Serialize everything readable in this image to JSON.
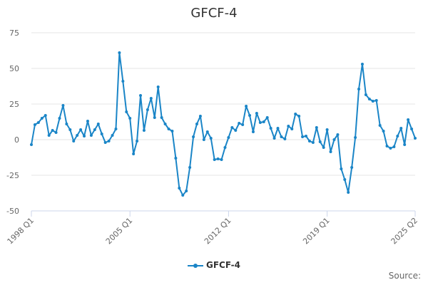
{
  "chart_data": {
    "type": "line",
    "title": "GFCF-4",
    "xlabel": "",
    "ylabel": "",
    "ylim": [
      -50,
      75
    ],
    "y_ticks": [
      "75",
      "50",
      "25",
      "0",
      "-25",
      "-50"
    ],
    "x_tick_labels": [
      "1998 Q1",
      "2005 Q1",
      "2012 Q1",
      "2019 Q1",
      "2025 Q2"
    ],
    "grid": true,
    "legend_position": "bottom-center",
    "series": [
      {
        "name": "GFCF-4",
        "color": "#1a85c7",
        "values": [
          -3.5,
          10.5,
          12,
          15,
          17,
          3,
          6.5,
          5,
          15,
          24,
          11,
          7,
          -1,
          3,
          7,
          2.5,
          13,
          3,
          7,
          11,
          4,
          -2,
          -1,
          3,
          7.5,
          61,
          41,
          19.5,
          15,
          -10,
          -1,
          31,
          6.5,
          21,
          29,
          15.5,
          37,
          15.5,
          11,
          7.5,
          6,
          -13,
          -34,
          -39,
          -36,
          -19.5,
          2,
          11,
          16.5,
          0,
          5.5,
          1,
          -14,
          -13.5,
          -14,
          -5.5,
          1.5,
          8.5,
          6.5,
          11.5,
          10.5,
          23.5,
          17,
          5.5,
          18.5,
          12,
          12.5,
          15.5,
          8,
          1,
          8,
          2,
          0.5,
          9.5,
          7.5,
          18,
          16.5,
          2,
          2.5,
          -1,
          -2,
          8.5,
          -1.5,
          -5.5,
          7,
          -8.5,
          0,
          3.5,
          -20.5,
          -28,
          -37,
          -19.5,
          1.5,
          35.5,
          53,
          31.5,
          28.5,
          27,
          27.5,
          10,
          6,
          -4.5,
          -6,
          -5,
          2.5,
          8,
          -3.5,
          14,
          7.5,
          1
        ]
      }
    ]
  },
  "legend": {
    "label": "GFCF-4"
  },
  "source_label": "Source:"
}
